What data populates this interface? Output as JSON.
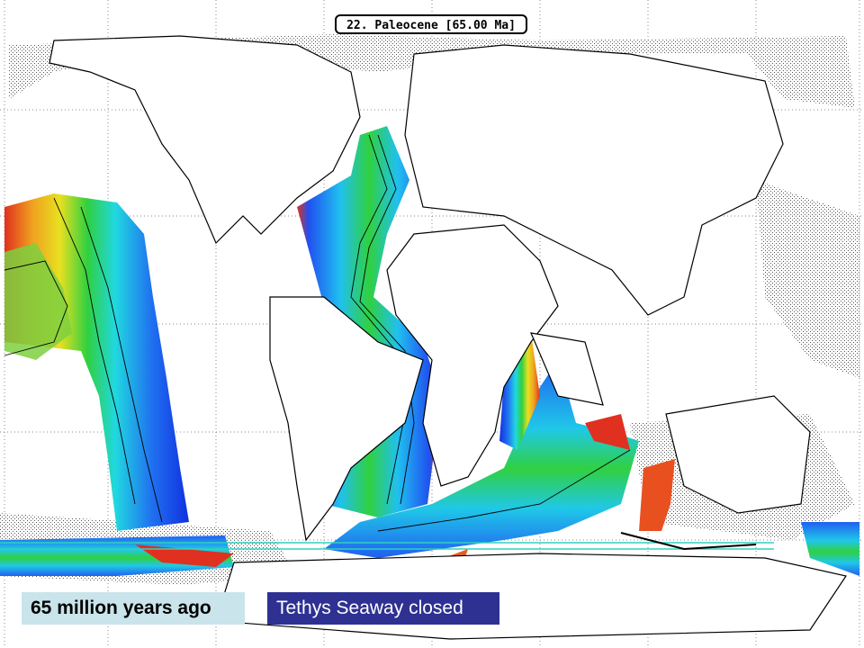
{
  "header": {
    "title": "22. Paleocene [65.00 Ma]"
  },
  "captions": {
    "age": "65 million years ago",
    "event": "Tethys Seaway closed"
  }
}
